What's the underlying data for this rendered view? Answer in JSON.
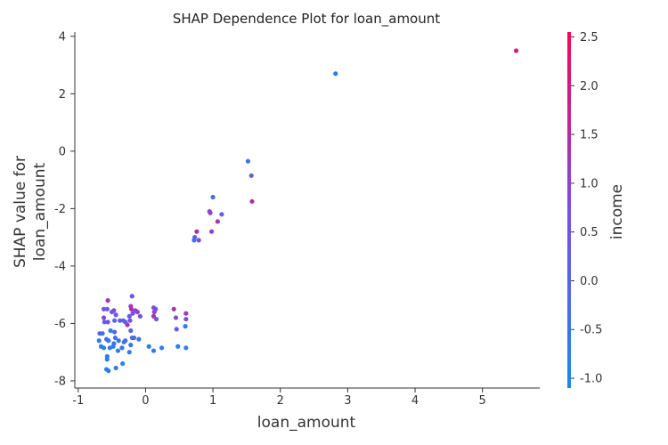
{
  "chart_data": {
    "type": "scatter",
    "title": "SHAP Dependence Plot for loan_amount",
    "xlabel": "loan_amount",
    "ylabel_lines": [
      "SHAP value for",
      "loan_amount"
    ],
    "colorbar_label": "income",
    "xlim": [
      -1.05,
      5.85
    ],
    "ylim": [
      -8.25,
      4.15
    ],
    "x_ticks": [
      -1,
      0,
      1,
      2,
      3,
      4,
      5
    ],
    "x_tick_labels": [
      "-1",
      "0",
      "1",
      "2",
      "3",
      "4",
      "5"
    ],
    "y_ticks": [
      -8,
      -6,
      -4,
      -2,
      0,
      2,
      4
    ],
    "y_tick_labels": [
      "-8",
      "-6",
      "-4",
      "-2",
      "0",
      "2",
      "4"
    ],
    "colorbar_range": [
      -1.1,
      2.55
    ],
    "colorbar_ticks": [
      -1.0,
      -0.5,
      0.0,
      0.5,
      1.0,
      1.5,
      2.0,
      2.5
    ],
    "colorbar_tick_labels": [
      "-1.0",
      "-0.5",
      "0.0",
      "0.5",
      "1.0",
      "1.5",
      "2.0",
      "2.5"
    ],
    "colors": {
      "low": "#1e88e5",
      "mid": "#7a4fe0",
      "high": "#ff0052"
    },
    "grid": false,
    "points": [
      {
        "x": 5.5,
        "y": 3.5,
        "c": 2.0
      },
      {
        "x": 2.82,
        "y": 2.7,
        "c": -0.7
      },
      {
        "x": 1.52,
        "y": -0.35,
        "c": -0.6
      },
      {
        "x": 1.57,
        "y": -0.85,
        "c": 0.2
      },
      {
        "x": 1.58,
        "y": -1.75,
        "c": 1.4
      },
      {
        "x": 1.0,
        "y": -1.6,
        "c": -0.3
      },
      {
        "x": 1.13,
        "y": -2.2,
        "c": 0.2
      },
      {
        "x": 0.95,
        "y": -2.1,
        "c": 1.2
      },
      {
        "x": 0.96,
        "y": -2.15,
        "c": 0.9
      },
      {
        "x": 1.07,
        "y": -2.45,
        "c": 1.3
      },
      {
        "x": 0.98,
        "y": -2.8,
        "c": 1.0
      },
      {
        "x": 0.76,
        "y": -2.8,
        "c": 1.5
      },
      {
        "x": 0.73,
        "y": -3.0,
        "c": 0.3
      },
      {
        "x": 0.72,
        "y": -3.1,
        "c": -0.5
      },
      {
        "x": 0.79,
        "y": -3.1,
        "c": 0.8
      },
      {
        "x": 0.6,
        "y": -5.65,
        "c": 1.2
      },
      {
        "x": 0.6,
        "y": -5.85,
        "c": 0.6
      },
      {
        "x": 0.59,
        "y": -6.1,
        "c": -0.7
      },
      {
        "x": 0.6,
        "y": -6.85,
        "c": -0.7
      },
      {
        "x": 0.46,
        "y": -6.2,
        "c": 0.3
      },
      {
        "x": 0.42,
        "y": -5.5,
        "c": 1.3
      },
      {
        "x": 0.45,
        "y": -5.8,
        "c": 0.8
      },
      {
        "x": 0.48,
        "y": -6.8,
        "c": -0.8
      },
      {
        "x": 0.24,
        "y": -6.85,
        "c": -0.7
      },
      {
        "x": 0.15,
        "y": -5.5,
        "c": 0.6
      },
      {
        "x": 0.12,
        "y": -5.45,
        "c": 0.8
      },
      {
        "x": 0.13,
        "y": -5.6,
        "c": 1.0
      },
      {
        "x": 0.12,
        "y": -5.75,
        "c": 1.4
      },
      {
        "x": 0.16,
        "y": -5.85,
        "c": 0.4
      },
      {
        "x": 0.12,
        "y": -6.95,
        "c": -0.6
      },
      {
        "x": 0.05,
        "y": -6.8,
        "c": -0.8
      },
      {
        "x": -0.08,
        "y": -5.75,
        "c": 0.5
      },
      {
        "x": -0.12,
        "y": -5.6,
        "c": 1.1
      },
      {
        "x": -0.15,
        "y": -5.55,
        "c": 0.9
      },
      {
        "x": -0.2,
        "y": -5.05,
        "c": 0.5
      },
      {
        "x": -0.22,
        "y": -5.4,
        "c": 1.2
      },
      {
        "x": -0.21,
        "y": -5.5,
        "c": 1.5
      },
      {
        "x": -0.19,
        "y": -5.65,
        "c": 0.8
      },
      {
        "x": -0.24,
        "y": -5.75,
        "c": 0.3
      },
      {
        "x": -0.23,
        "y": -5.9,
        "c": 0.7
      },
      {
        "x": -0.27,
        "y": -6.05,
        "c": 1.3
      },
      {
        "x": -0.22,
        "y": -6.25,
        "c": 0.2
      },
      {
        "x": -0.2,
        "y": -6.5,
        "c": -0.3
      },
      {
        "x": -0.17,
        "y": -6.5,
        "c": -0.2
      },
      {
        "x": -0.1,
        "y": -6.55,
        "c": -0.5
      },
      {
        "x": -0.22,
        "y": -6.75,
        "c": -0.6
      },
      {
        "x": -0.24,
        "y": -7.0,
        "c": -0.7
      },
      {
        "x": -0.3,
        "y": -5.95,
        "c": 0.3
      },
      {
        "x": -0.33,
        "y": -5.9,
        "c": 0.1
      },
      {
        "x": -0.3,
        "y": -6.6,
        "c": -0.4
      },
      {
        "x": -0.32,
        "y": -6.65,
        "c": -0.6
      },
      {
        "x": -0.35,
        "y": -6.85,
        "c": -0.5
      },
      {
        "x": -0.34,
        "y": -7.4,
        "c": -0.8
      },
      {
        "x": -0.38,
        "y": -5.9,
        "c": 0.2
      },
      {
        "x": -0.4,
        "y": -6.6,
        "c": -0.5
      },
      {
        "x": -0.41,
        "y": -6.95,
        "c": -0.7
      },
      {
        "x": -0.44,
        "y": -5.7,
        "c": 0.4
      },
      {
        "x": -0.47,
        "y": -5.55,
        "c": 0.9
      },
      {
        "x": -0.46,
        "y": -5.9,
        "c": 0.1
      },
      {
        "x": -0.46,
        "y": -6.3,
        "c": -0.3
      },
      {
        "x": -0.45,
        "y": -6.5,
        "c": -0.2
      },
      {
        "x": -0.47,
        "y": -6.7,
        "c": -0.5
      },
      {
        "x": -0.48,
        "y": -6.8,
        "c": -0.6
      },
      {
        "x": -0.44,
        "y": -7.55,
        "c": -0.8
      },
      {
        "x": -0.5,
        "y": -5.6,
        "c": 0.6
      },
      {
        "x": -0.52,
        "y": -6.25,
        "c": -0.7
      },
      {
        "x": -0.55,
        "y": -6.6,
        "c": -0.5
      },
      {
        "x": -0.53,
        "y": -6.85,
        "c": -0.9
      },
      {
        "x": -0.56,
        "y": -5.2,
        "c": 1.3
      },
      {
        "x": -0.57,
        "y": -5.5,
        "c": 0.4
      },
      {
        "x": -0.56,
        "y": -5.95,
        "c": 0.8
      },
      {
        "x": -0.58,
        "y": -6.55,
        "c": -0.4
      },
      {
        "x": -0.57,
        "y": -7.15,
        "c": -0.8
      },
      {
        "x": -0.57,
        "y": -7.25,
        "c": -0.7
      },
      {
        "x": -0.58,
        "y": -7.6,
        "c": -0.9
      },
      {
        "x": -0.55,
        "y": -7.65,
        "c": -0.8
      },
      {
        "x": -0.62,
        "y": -5.5,
        "c": 0.7
      },
      {
        "x": -0.62,
        "y": -5.8,
        "c": 0.9
      },
      {
        "x": -0.61,
        "y": -5.95,
        "c": 0.3
      },
      {
        "x": -0.64,
        "y": -6.35,
        "c": -0.5
      },
      {
        "x": -0.62,
        "y": -6.85,
        "c": -0.8
      },
      {
        "x": -0.68,
        "y": -6.35,
        "c": -0.2
      },
      {
        "x": -0.69,
        "y": -6.6,
        "c": -0.7
      },
      {
        "x": -0.66,
        "y": -6.8,
        "c": -0.6
      }
    ]
  }
}
